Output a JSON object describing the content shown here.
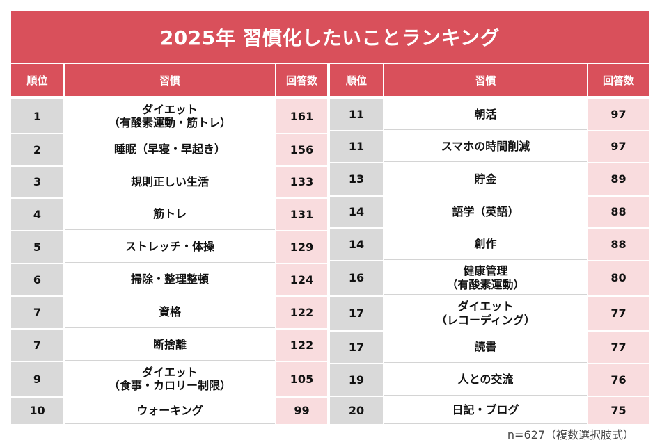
{
  "title": "2025年 習慣化したいことランキング",
  "colors": {
    "header_red": "#d9505b",
    "rank_gray": "#d9d9d9",
    "count_pink": "#f9dcde"
  },
  "headers": {
    "rank": "順位",
    "habit": "習慣",
    "count": "回答数"
  },
  "left_rows": [
    {
      "rank": "1",
      "habit_lines": [
        "ダイエット",
        "（有酸素運動・筋トレ）"
      ],
      "count": "161"
    },
    {
      "rank": "2",
      "habit_lines": [
        "睡眠（早寝・早起き）"
      ],
      "count": "156"
    },
    {
      "rank": "3",
      "habit_lines": [
        "規則正しい生活"
      ],
      "count": "133"
    },
    {
      "rank": "4",
      "habit_lines": [
        "筋トレ"
      ],
      "count": "131"
    },
    {
      "rank": "5",
      "habit_lines": [
        "ストレッチ・体操"
      ],
      "count": "129"
    },
    {
      "rank": "6",
      "habit_lines": [
        "掃除・整理整頓"
      ],
      "count": "124"
    },
    {
      "rank": "7",
      "habit_lines": [
        "資格"
      ],
      "count": "122"
    },
    {
      "rank": "7",
      "habit_lines": [
        "断捨離"
      ],
      "count": "122"
    },
    {
      "rank": "9",
      "habit_lines": [
        "ダイエット",
        "（食事・カロリー制限）"
      ],
      "count": "105"
    },
    {
      "rank": "10",
      "habit_lines": [
        "ウォーキング"
      ],
      "count": "99"
    }
  ],
  "right_rows": [
    {
      "rank": "11",
      "habit_lines": [
        "朝活"
      ],
      "count": "97"
    },
    {
      "rank": "11",
      "habit_lines": [
        "スマホの時間削減"
      ],
      "count": "97"
    },
    {
      "rank": "13",
      "habit_lines": [
        "貯金"
      ],
      "count": "89"
    },
    {
      "rank": "14",
      "habit_lines": [
        "語学（英語）"
      ],
      "count": "88"
    },
    {
      "rank": "14",
      "habit_lines": [
        "創作"
      ],
      "count": "88"
    },
    {
      "rank": "16",
      "habit_lines": [
        "健康管理",
        "（有酸素運動）"
      ],
      "count": "80"
    },
    {
      "rank": "17",
      "habit_lines": [
        "ダイエット",
        "（レコーディング）"
      ],
      "count": "77"
    },
    {
      "rank": "17",
      "habit_lines": [
        "読書"
      ],
      "count": "77"
    },
    {
      "rank": "19",
      "habit_lines": [
        "人との交流"
      ],
      "count": "76"
    },
    {
      "rank": "20",
      "habit_lines": [
        "日記・ブログ"
      ],
      "count": "75"
    }
  ],
  "footnote": "n=627（複数選択肢式）"
}
